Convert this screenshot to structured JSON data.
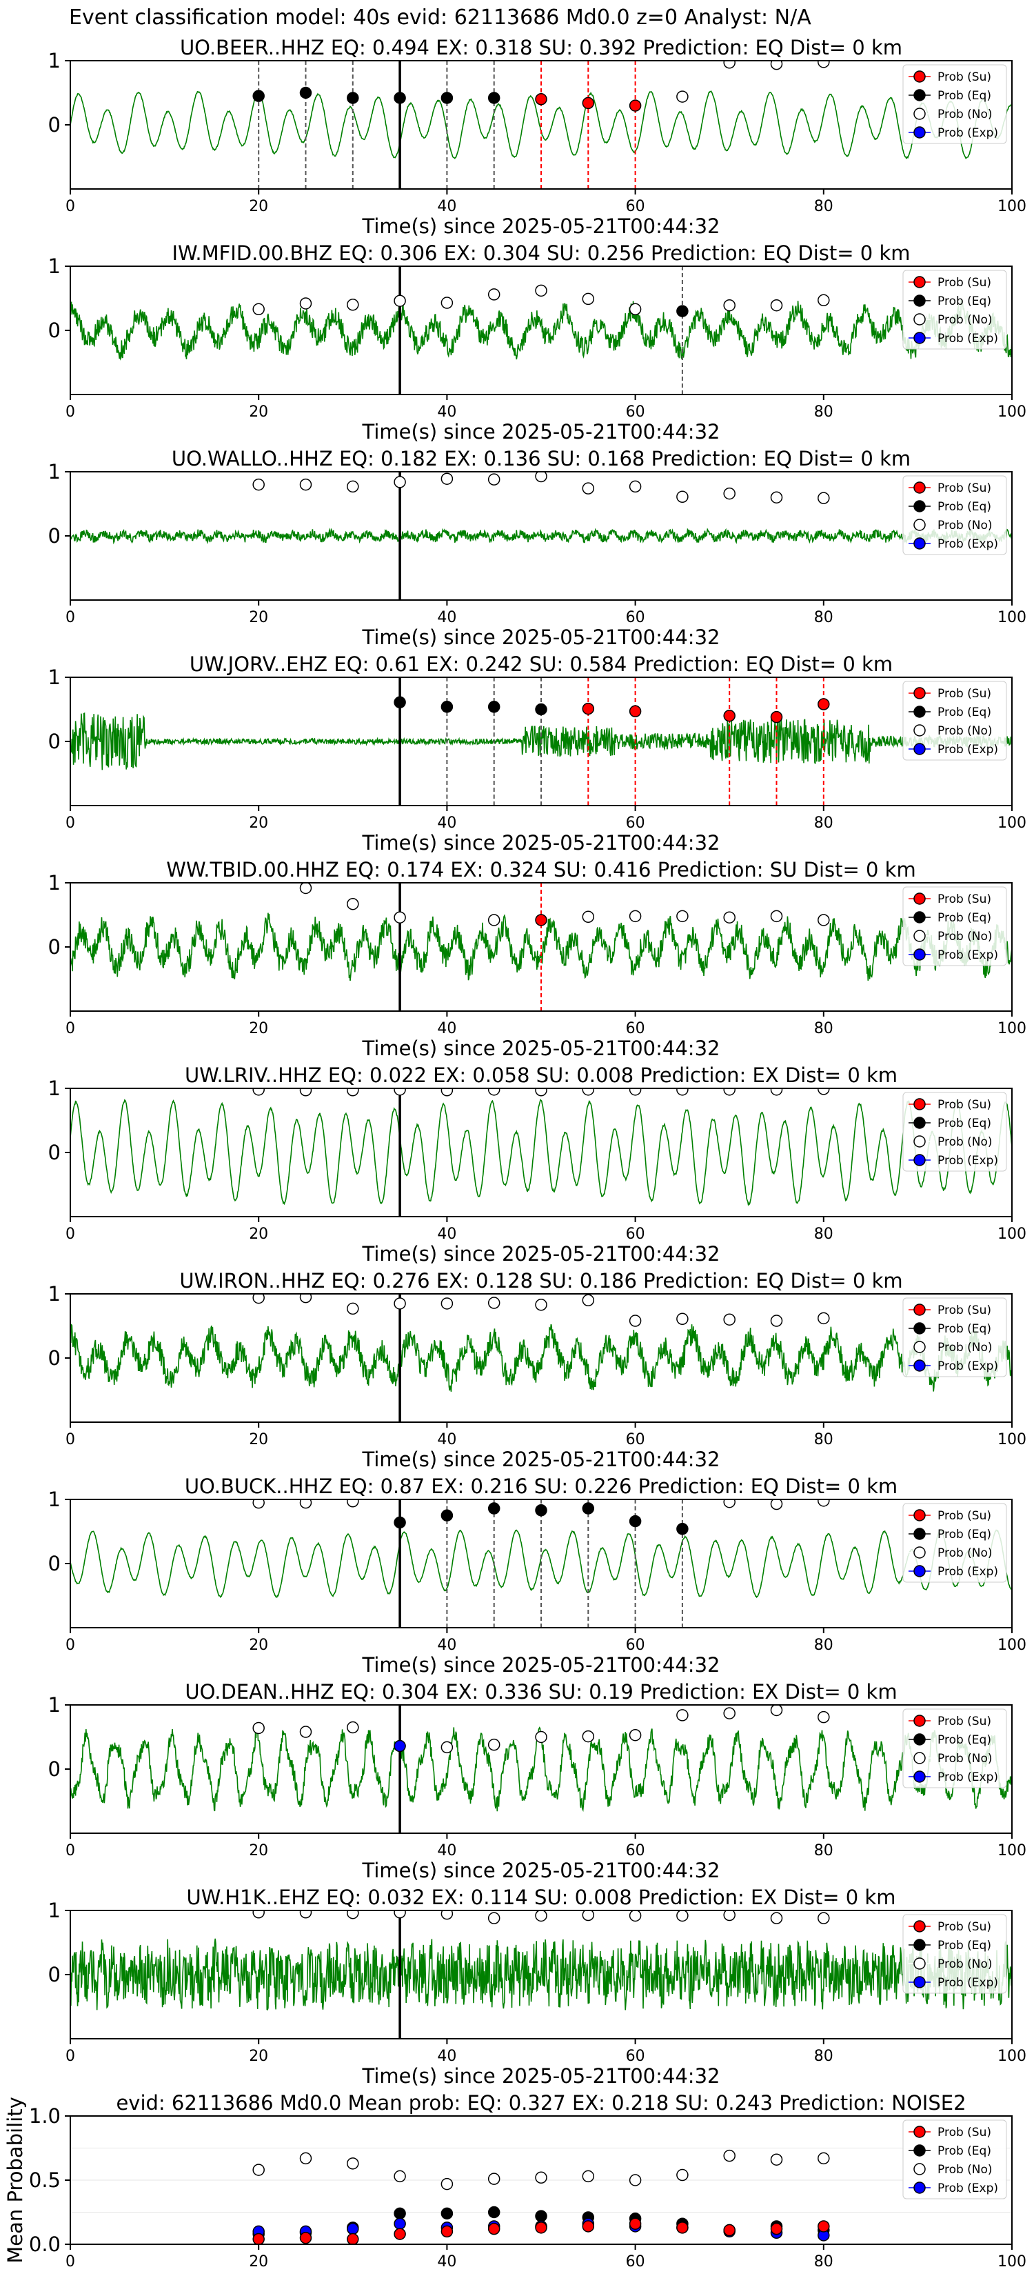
{
  "figure_title": "Event classification model: 40s evid: 62113686 Md0.0 z=0 Analyst: N/A",
  "legend": [
    "Prob (Su)",
    "Prob (Eq)",
    "Prob (No)",
    "Prob (Exp)"
  ],
  "colors": {
    "trace": "#008000",
    "su": "#ff0000",
    "eq": "#000000",
    "no": "#ffffff",
    "exp": "#0000ff",
    "frame": "#000000",
    "grid": "#e6e6e6"
  },
  "chart_data": [
    {
      "type": "line",
      "title": "UO.BEER..HHZ   EQ: 0.494  EX: 0.318  SU: 0.392   Prediction: EQ    Dist= 0 km",
      "xlabel": "Time(s) since 2025-05-21T00:44:32",
      "xlim": [
        0,
        100
      ],
      "ylim": [
        -1,
        1
      ],
      "xticks": [
        0,
        20,
        40,
        60,
        80,
        100
      ],
      "yticks": [
        0,
        1
      ],
      "waveform": {
        "style": "smooth",
        "amplitude": 0.45,
        "period": 3.2
      },
      "pick_line": 35,
      "eq_lines": [
        20,
        25,
        30,
        40,
        45
      ],
      "su_lines": [
        50,
        55,
        60
      ],
      "points": {
        "eq": [
          [
            20,
            0.45
          ],
          [
            25,
            0.5
          ],
          [
            30,
            0.42
          ],
          [
            35,
            0.42
          ],
          [
            40,
            0.42
          ],
          [
            45,
            0.42
          ]
        ],
        "su": [
          [
            50,
            0.4
          ],
          [
            55,
            0.34
          ],
          [
            60,
            0.3
          ]
        ],
        "no": [
          [
            65,
            0.44
          ],
          [
            70,
            0.97
          ],
          [
            75,
            0.95
          ],
          [
            80,
            0.98
          ]
        ],
        "exp": []
      }
    },
    {
      "type": "line",
      "title": "IW.MFID.00.BHZ   EQ: 0.306  EX: 0.304  SU: 0.256   Prediction: EQ    Dist= 0 km",
      "xlabel": "Time(s) since 2025-05-21T00:44:32",
      "xlim": [
        0,
        100
      ],
      "ylim": [
        -1,
        1
      ],
      "xticks": [
        0,
        20,
        40,
        60,
        80,
        100
      ],
      "yticks": [
        0,
        1
      ],
      "waveform": {
        "style": "noisy",
        "amplitude": 0.35,
        "period": 3.5
      },
      "pick_line": 35,
      "eq_lines": [
        65
      ],
      "su_lines": [],
      "points": {
        "eq": [
          [
            65,
            0.3
          ]
        ],
        "su": [],
        "no": [
          [
            20,
            0.33
          ],
          [
            25,
            0.42
          ],
          [
            30,
            0.4
          ],
          [
            35,
            0.46
          ],
          [
            40,
            0.43
          ],
          [
            45,
            0.56
          ],
          [
            50,
            0.62
          ],
          [
            55,
            0.49
          ],
          [
            60,
            0.33
          ],
          [
            70,
            0.39
          ],
          [
            75,
            0.39
          ],
          [
            80,
            0.47
          ]
        ],
        "exp": []
      }
    },
    {
      "type": "line",
      "title": "UO.WALLO..HHZ   EQ: 0.182  EX: 0.136  SU: 0.168   Prediction: EQ    Dist= 0 km",
      "xlabel": "Time(s) since 2025-05-21T00:44:32",
      "xlim": [
        0,
        100
      ],
      "ylim": [
        -1,
        1
      ],
      "xticks": [
        0,
        20,
        40,
        60,
        80,
        100
      ],
      "yticks": [
        0,
        1
      ],
      "waveform": {
        "style": "flat",
        "amplitude": 0.15,
        "period": 2.0
      },
      "pick_line": 35,
      "eq_lines": [],
      "su_lines": [],
      "points": {
        "eq": [],
        "su": [],
        "no": [
          [
            20,
            0.8
          ],
          [
            25,
            0.8
          ],
          [
            30,
            0.77
          ],
          [
            35,
            0.84
          ],
          [
            40,
            0.89
          ],
          [
            45,
            0.88
          ],
          [
            50,
            0.93
          ],
          [
            55,
            0.74
          ],
          [
            60,
            0.77
          ],
          [
            65,
            0.61
          ],
          [
            70,
            0.66
          ],
          [
            75,
            0.6
          ],
          [
            80,
            0.59
          ]
        ],
        "exp": []
      }
    },
    {
      "type": "line",
      "title": "UW.JORV..EHZ   EQ: 0.61  EX: 0.242  SU: 0.584   Prediction: EQ    Dist= 0 km",
      "xlabel": "Time(s) since 2025-05-21T00:44:32",
      "xlim": [
        0,
        100
      ],
      "ylim": [
        -1,
        1
      ],
      "xticks": [
        0,
        20,
        40,
        60,
        80,
        100
      ],
      "yticks": [
        0,
        1
      ],
      "waveform": {
        "style": "burst",
        "amplitude": 0.35,
        "period": 1.0
      },
      "pick_line": 35,
      "eq_lines": [
        40,
        45,
        50
      ],
      "su_lines": [
        55,
        60,
        70,
        75,
        80
      ],
      "points": {
        "eq": [
          [
            35,
            0.61
          ],
          [
            40,
            0.54
          ],
          [
            45,
            0.54
          ],
          [
            50,
            0.5
          ]
        ],
        "su": [
          [
            55,
            0.51
          ],
          [
            60,
            0.47
          ],
          [
            70,
            0.4
          ],
          [
            75,
            0.38
          ],
          [
            80,
            0.58
          ]
        ],
        "no": [],
        "exp": []
      }
    },
    {
      "type": "line",
      "title": "WW.TBID.00.HHZ   EQ: 0.174  EX: 0.324  SU: 0.416   Prediction: SU    Dist= 0 km",
      "xlabel": "Time(s) since 2025-05-21T00:44:32",
      "xlim": [
        0,
        100
      ],
      "ylim": [
        -1,
        1
      ],
      "xticks": [
        0,
        20,
        40,
        60,
        80,
        100
      ],
      "yticks": [
        0,
        1
      ],
      "waveform": {
        "style": "noisy",
        "amplitude": 0.4,
        "period": 2.5
      },
      "pick_line": 35,
      "eq_lines": [],
      "su_lines": [
        50
      ],
      "points": {
        "eq": [],
        "su": [
          [
            50,
            0.42
          ]
        ],
        "no": [
          [
            25,
            0.92
          ],
          [
            30,
            0.67
          ],
          [
            35,
            0.46
          ],
          [
            45,
            0.42
          ],
          [
            55,
            0.47
          ],
          [
            60,
            0.48
          ],
          [
            65,
            0.48
          ],
          [
            70,
            0.46
          ],
          [
            75,
            0.48
          ],
          [
            80,
            0.42
          ]
        ],
        "exp": []
      }
    },
    {
      "type": "line",
      "title": "UW.LRIV..HHZ   EQ: 0.022  EX: 0.058  SU: 0.008   Prediction: EX    Dist= 0 km",
      "xlabel": "Time(s) since 2025-05-21T00:44:32",
      "xlim": [
        0,
        100
      ],
      "ylim": [
        -1,
        1
      ],
      "xticks": [
        0,
        20,
        40,
        60,
        80,
        100
      ],
      "yticks": [
        0,
        1
      ],
      "waveform": {
        "style": "smooth",
        "amplitude": 0.7,
        "period": 2.6
      },
      "pick_line": 35,
      "eq_lines": [],
      "su_lines": [],
      "points": {
        "eq": [],
        "su": [],
        "no": [
          [
            20,
            0.98
          ],
          [
            25,
            0.97
          ],
          [
            30,
            0.97
          ],
          [
            35,
            0.98
          ],
          [
            40,
            0.97
          ],
          [
            45,
            0.98
          ],
          [
            50,
            0.97
          ],
          [
            55,
            0.98
          ],
          [
            60,
            0.98
          ],
          [
            65,
            0.98
          ],
          [
            70,
            0.98
          ],
          [
            75,
            0.98
          ],
          [
            80,
            0.99
          ]
        ],
        "exp": []
      }
    },
    {
      "type": "line",
      "title": "UW.IRON..HHZ   EQ: 0.276  EX: 0.128  SU: 0.186   Prediction: EQ    Dist= 0 km",
      "xlabel": "Time(s) since 2025-05-21T00:44:32",
      "xlim": [
        0,
        100
      ],
      "ylim": [
        -1,
        1
      ],
      "xticks": [
        0,
        20,
        40,
        60,
        80,
        100
      ],
      "yticks": [
        0,
        1
      ],
      "waveform": {
        "style": "noisy",
        "amplitude": 0.4,
        "period": 3.0
      },
      "pick_line": 35,
      "eq_lines": [],
      "su_lines": [],
      "points": {
        "eq": [],
        "su": [],
        "no": [
          [
            20,
            0.94
          ],
          [
            25,
            0.95
          ],
          [
            30,
            0.77
          ],
          [
            35,
            0.85
          ],
          [
            40,
            0.85
          ],
          [
            45,
            0.86
          ],
          [
            50,
            0.83
          ],
          [
            55,
            0.9
          ],
          [
            60,
            0.58
          ],
          [
            65,
            0.61
          ],
          [
            70,
            0.6
          ],
          [
            75,
            0.58
          ],
          [
            80,
            0.62
          ]
        ],
        "exp": []
      }
    },
    {
      "type": "line",
      "title": "UO.BUCK..HHZ   EQ: 0.87  EX: 0.216  SU: 0.226   Prediction: EQ    Dist= 0 km",
      "xlabel": "Time(s) since 2025-05-21T00:44:32",
      "xlim": [
        0,
        100
      ],
      "ylim": [
        -1,
        1
      ],
      "xticks": [
        0,
        20,
        40,
        60,
        80,
        100
      ],
      "yticks": [
        0,
        1
      ],
      "waveform": {
        "style": "smooth",
        "amplitude": 0.45,
        "period": 3.0
      },
      "pick_line": 35,
      "eq_lines": [
        40,
        45,
        50,
        55,
        60,
        65
      ],
      "su_lines": [],
      "points": {
        "eq": [
          [
            35,
            0.64
          ],
          [
            40,
            0.75
          ],
          [
            45,
            0.86
          ],
          [
            50,
            0.83
          ],
          [
            55,
            0.86
          ],
          [
            60,
            0.66
          ],
          [
            65,
            0.54
          ]
        ],
        "su": [],
        "no": [
          [
            20,
            0.95
          ],
          [
            25,
            0.95
          ],
          [
            30,
            0.97
          ],
          [
            70,
            0.96
          ],
          [
            75,
            0.93
          ],
          [
            80,
            0.98
          ]
        ],
        "exp": []
      }
    },
    {
      "type": "line",
      "title": "UO.DEAN..HHZ   EQ: 0.304  EX: 0.336  SU: 0.19   Prediction: EX    Dist= 0 km",
      "xlabel": "Time(s) since 2025-05-21T00:44:32",
      "xlim": [
        0,
        100
      ],
      "ylim": [
        -1,
        1
      ],
      "xticks": [
        0,
        20,
        40,
        60,
        80,
        100
      ],
      "yticks": [
        0,
        1
      ],
      "waveform": {
        "style": "rough",
        "amplitude": 0.55,
        "period": 3.0
      },
      "pick_line": 35,
      "eq_lines": [],
      "su_lines": [],
      "points": {
        "eq": [],
        "su": [],
        "no": [
          [
            20,
            0.64
          ],
          [
            25,
            0.58
          ],
          [
            30,
            0.65
          ],
          [
            40,
            0.34
          ],
          [
            45,
            0.38
          ],
          [
            50,
            0.5
          ],
          [
            55,
            0.51
          ],
          [
            60,
            0.53
          ],
          [
            65,
            0.84
          ],
          [
            70,
            0.87
          ],
          [
            75,
            0.92
          ],
          [
            80,
            0.81
          ]
        ],
        "exp": [
          [
            35,
            0.36
          ]
        ]
      }
    },
    {
      "type": "line",
      "title": "UW.H1K..EHZ   EQ: 0.032  EX: 0.114  SU: 0.008   Prediction: EX    Dist= 0 km",
      "xlabel": "Time(s) since 2025-05-21T00:44:32",
      "xlim": [
        0,
        100
      ],
      "ylim": [
        -1,
        1
      ],
      "xticks": [
        0,
        20,
        40,
        60,
        80,
        100
      ],
      "yticks": [
        0,
        1
      ],
      "waveform": {
        "style": "dense",
        "amplitude": 0.45,
        "period": 1.0
      },
      "pick_line": 35,
      "eq_lines": [],
      "su_lines": [],
      "points": {
        "eq": [],
        "su": [],
        "no": [
          [
            20,
            0.97
          ],
          [
            25,
            0.97
          ],
          [
            30,
            0.96
          ],
          [
            35,
            0.97
          ],
          [
            40,
            0.95
          ],
          [
            45,
            0.88
          ],
          [
            50,
            0.92
          ],
          [
            55,
            0.93
          ],
          [
            60,
            0.92
          ],
          [
            65,
            0.92
          ],
          [
            70,
            0.93
          ],
          [
            75,
            0.88
          ],
          [
            80,
            0.88
          ]
        ],
        "exp": []
      }
    },
    {
      "type": "scatter",
      "title": "evid: 62113686  Md0.0   Mean prob:   EQ: 0.327  EX: 0.218  SU: 0.243   Prediction: NOISE2",
      "xlabel": "",
      "ylabel": "Mean Probability",
      "xlim": [
        0,
        100
      ],
      "ylim": [
        0,
        1
      ],
      "xticks": [
        0,
        20,
        40,
        60,
        80,
        100
      ],
      "yticks": [
        0.0,
        0.5,
        1.0
      ],
      "pick_line": null,
      "eq_lines": [],
      "su_lines": [],
      "points": {
        "no": [
          [
            20,
            0.58
          ],
          [
            25,
            0.67
          ],
          [
            30,
            0.63
          ],
          [
            35,
            0.53
          ],
          [
            40,
            0.47
          ],
          [
            45,
            0.51
          ],
          [
            50,
            0.52
          ],
          [
            55,
            0.53
          ],
          [
            60,
            0.5
          ],
          [
            65,
            0.54
          ],
          [
            70,
            0.69
          ],
          [
            75,
            0.66
          ],
          [
            80,
            0.67
          ]
        ],
        "eq": [
          [
            20,
            0.08
          ],
          [
            25,
            0.09
          ],
          [
            30,
            0.13
          ],
          [
            35,
            0.24
          ],
          [
            40,
            0.24
          ],
          [
            45,
            0.25
          ],
          [
            50,
            0.22
          ],
          [
            55,
            0.21
          ],
          [
            60,
            0.2
          ],
          [
            65,
            0.16
          ],
          [
            70,
            0.11
          ],
          [
            75,
            0.14
          ],
          [
            80,
            0.11
          ]
        ],
        "exp": [
          [
            20,
            0.1
          ],
          [
            25,
            0.1
          ],
          [
            30,
            0.12
          ],
          [
            35,
            0.16
          ],
          [
            40,
            0.13
          ],
          [
            45,
            0.14
          ],
          [
            50,
            0.14
          ],
          [
            55,
            0.16
          ],
          [
            60,
            0.14
          ],
          [
            65,
            0.13
          ],
          [
            70,
            0.1
          ],
          [
            75,
            0.09
          ],
          [
            80,
            0.07
          ]
        ],
        "su": [
          [
            20,
            0.04
          ],
          [
            25,
            0.05
          ],
          [
            30,
            0.04
          ],
          [
            35,
            0.08
          ],
          [
            40,
            0.1
          ],
          [
            45,
            0.12
          ],
          [
            50,
            0.13
          ],
          [
            55,
            0.14
          ],
          [
            60,
            0.16
          ],
          [
            65,
            0.13
          ],
          [
            70,
            0.11
          ],
          [
            75,
            0.12
          ],
          [
            80,
            0.14
          ]
        ]
      }
    }
  ]
}
